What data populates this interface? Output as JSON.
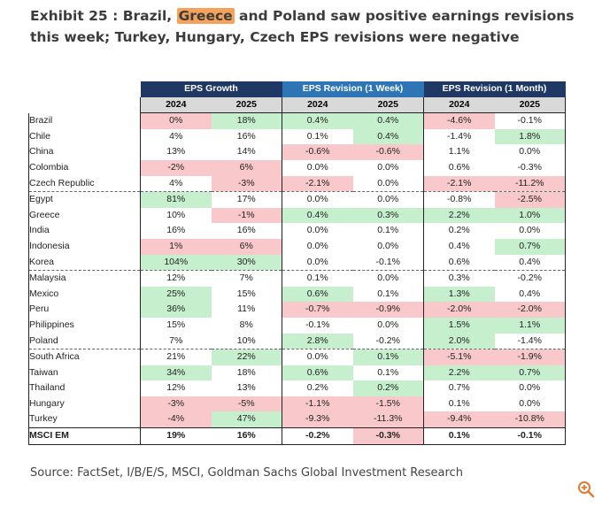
{
  "title": {
    "prefix": "Exhibit 25 : Brazil, ",
    "highlight": "Greece",
    "suffix": " and Poland saw positive earnings revisions this week; Turkey, Hungary, Czech EPS revisions were negative"
  },
  "table": {
    "groups": [
      "EPS Growth",
      "EPS Revision (1 Week)",
      "EPS Revision (1 Month)"
    ],
    "years": [
      "2024",
      "2025"
    ],
    "rows": [
      {
        "name": "Brazil",
        "v": [
          "0%",
          "18%",
          "0.4%",
          "0.4%",
          "-4.6%",
          "-0.1%"
        ],
        "c": [
          "neg",
          "pos",
          "pos",
          "pos",
          "neg",
          ""
        ]
      },
      {
        "name": "Chile",
        "v": [
          "4%",
          "16%",
          "0.1%",
          "0.4%",
          "-1.4%",
          "1.8%"
        ],
        "c": [
          "",
          "",
          "",
          "pos",
          "",
          "pos"
        ]
      },
      {
        "name": "China",
        "v": [
          "13%",
          "14%",
          "-0.6%",
          "-0.6%",
          "1.1%",
          "0.0%"
        ],
        "c": [
          "",
          "",
          "neg",
          "neg",
          "",
          ""
        ]
      },
      {
        "name": "Colombia",
        "v": [
          "-2%",
          "6%",
          "0.0%",
          "0.0%",
          "0.6%",
          "-0.3%"
        ],
        "c": [
          "neg",
          "neg",
          "",
          "",
          "",
          ""
        ]
      },
      {
        "name": "Czech Republic",
        "v": [
          "4%",
          "-3%",
          "-2.1%",
          "0.0%",
          "-2.1%",
          "-11.2%"
        ],
        "c": [
          "",
          "neg",
          "neg",
          "",
          "neg",
          "neg"
        ],
        "sep": true
      },
      {
        "name": "Egypt",
        "v": [
          "81%",
          "17%",
          "0.0%",
          "0.0%",
          "-0.8%",
          "-2.5%"
        ],
        "c": [
          "pos",
          "",
          "",
          "",
          "",
          "neg"
        ]
      },
      {
        "name": "Greece",
        "v": [
          "10%",
          "-1%",
          "0.4%",
          "0.3%",
          "2.2%",
          "1.0%"
        ],
        "c": [
          "",
          "neg",
          "pos",
          "pos",
          "pos",
          "pos"
        ]
      },
      {
        "name": "India",
        "v": [
          "16%",
          "16%",
          "0.0%",
          "0.1%",
          "0.2%",
          "0.0%"
        ],
        "c": [
          "",
          "",
          "",
          "",
          "",
          ""
        ]
      },
      {
        "name": "Indonesia",
        "v": [
          "1%",
          "6%",
          "0.0%",
          "0.0%",
          "0.4%",
          "0.7%"
        ],
        "c": [
          "neg",
          "neg",
          "",
          "",
          "",
          "pos"
        ]
      },
      {
        "name": "Korea",
        "v": [
          "104%",
          "30%",
          "0.0%",
          "-0.1%",
          "0.6%",
          "0.4%"
        ],
        "c": [
          "pos",
          "pos",
          "",
          "",
          "",
          ""
        ],
        "sep": true
      },
      {
        "name": "Malaysia",
        "v": [
          "12%",
          "7%",
          "0.1%",
          "0.0%",
          "0.3%",
          "-0.2%"
        ],
        "c": [
          "",
          "",
          "",
          "",
          "",
          ""
        ]
      },
      {
        "name": "Mexico",
        "v": [
          "25%",
          "15%",
          "0.6%",
          "0.1%",
          "1.3%",
          "0.4%"
        ],
        "c": [
          "pos",
          "",
          "pos",
          "",
          "pos",
          ""
        ]
      },
      {
        "name": "Peru",
        "v": [
          "36%",
          "11%",
          "-0.7%",
          "-0.9%",
          "-2.0%",
          "-2.0%"
        ],
        "c": [
          "pos",
          "",
          "neg",
          "neg",
          "neg",
          "neg"
        ]
      },
      {
        "name": "Philippines",
        "v": [
          "15%",
          "8%",
          "-0.1%",
          "0.0%",
          "1.5%",
          "1.1%"
        ],
        "c": [
          "",
          "",
          "",
          "",
          "pos",
          "pos"
        ]
      },
      {
        "name": "Poland",
        "v": [
          "7%",
          "10%",
          "2.8%",
          "-0.2%",
          "2.0%",
          "-1.4%"
        ],
        "c": [
          "",
          "",
          "pos",
          "",
          "pos",
          ""
        ],
        "sep": true
      },
      {
        "name": "South Africa",
        "v": [
          "21%",
          "22%",
          "0.0%",
          "0.1%",
          "-5.1%",
          "-1.9%"
        ],
        "c": [
          "",
          "pos",
          "",
          "pos",
          "neg",
          "neg"
        ]
      },
      {
        "name": "Taiwan",
        "v": [
          "34%",
          "18%",
          "0.6%",
          "0.1%",
          "2.2%",
          "0.7%"
        ],
        "c": [
          "pos",
          "",
          "pos",
          "",
          "pos",
          "pos"
        ]
      },
      {
        "name": "Thailand",
        "v": [
          "12%",
          "13%",
          "0.2%",
          "0.2%",
          "0.7%",
          "0.0%"
        ],
        "c": [
          "",
          "",
          "",
          "pos",
          "",
          ""
        ]
      },
      {
        "name": "Hungary",
        "v": [
          "-3%",
          "-5%",
          "-1.1%",
          "-1.5%",
          "0.1%",
          "0.0%"
        ],
        "c": [
          "neg",
          "neg",
          "neg",
          "neg",
          "",
          ""
        ]
      },
      {
        "name": "Turkey",
        "v": [
          "-4%",
          "47%",
          "-9.3%",
          "-11.3%",
          "-9.4%",
          "-10.8%"
        ],
        "c": [
          "neg",
          "pos",
          "neg",
          "neg",
          "neg",
          "neg"
        ],
        "last": true
      }
    ],
    "total": {
      "name": "MSCI EM",
      "v": [
        "19%",
        "16%",
        "-0.2%",
        "-0.3%",
        "0.1%",
        "-0.1%"
      ],
      "c": [
        "",
        "",
        "",
        "neg",
        "",
        ""
      ]
    }
  },
  "source": "Source: FactSet, I/B/E/S, MSCI, Goldman Sachs Global Investment Research",
  "icons": {
    "zoom": "zoom-in-icon"
  },
  "colors": {
    "header_dark": "#1f3864",
    "header_selected": "#2e75b6",
    "positive": "#c6efce",
    "negative": "#f8c8ca",
    "highlight": "#f5a25a"
  }
}
